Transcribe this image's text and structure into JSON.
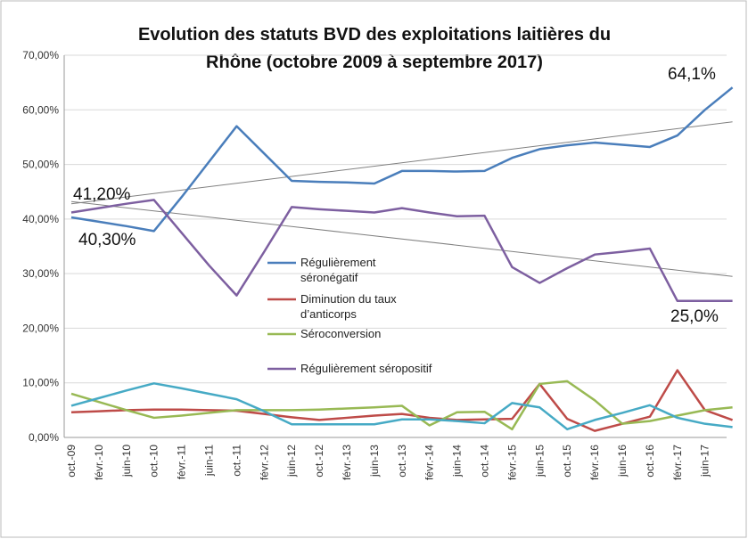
{
  "chart_data": {
    "type": "line",
    "title": [
      "Evolution des statuts BVD des exploitations laitières du",
      "Rhône (octobre 2009 à septembre 2017)"
    ],
    "categories": [
      "oct.-09",
      "févr.-10",
      "juin-10",
      "oct.-10",
      "févr.-11",
      "juin-11",
      "oct.-11",
      "févr.-12",
      "juin-12",
      "oct.-12",
      "févr.-13",
      "juin-13",
      "oct.-13",
      "févr.-14",
      "juin-14",
      "oct.-14",
      "févr.-15",
      "juin-15",
      "oct.-15",
      "févr.-16",
      "juin-16",
      "oct.-16",
      "févr.-17",
      "juin-17",
      null
    ],
    "series": [
      {
        "name": "Régulièrement séronégatif",
        "color": "#4a7ebb",
        "values": [
          40.3,
          39.5,
          38.7,
          37.8,
          44,
          50.5,
          57,
          52,
          47,
          46.8,
          46.7,
          46.5,
          48.8,
          48.8,
          48.7,
          48.8,
          51.2,
          52.8,
          53.5,
          54,
          53.6,
          53.2,
          55.3,
          60,
          64.1
        ]
      },
      {
        "name": "Diminution du taux d’anticorps",
        "color": "#be4b48",
        "values": [
          4.6,
          4.8,
          5,
          5.1,
          5.1,
          5,
          4.9,
          4.3,
          3.7,
          3.2,
          3.6,
          4,
          4.3,
          3.6,
          3.2,
          3.3,
          3.4,
          9.8,
          3.4,
          1.2,
          2.5,
          3.8,
          12.3,
          5,
          3.2
        ]
      },
      {
        "name": "Séroconversion",
        "color": "#98b954",
        "values": [
          8,
          6.5,
          5,
          3.6,
          4,
          4.5,
          5,
          5,
          5,
          5.1,
          5.3,
          5.5,
          5.8,
          2.2,
          4.6,
          4.7,
          1.5,
          9.8,
          10.3,
          6.8,
          2.5,
          3,
          4,
          5,
          5.5
        ]
      },
      {
        "name": null,
        "color": "#46aac5",
        "values": [
          5.8,
          7.2,
          8.6,
          9.9,
          9,
          8,
          7,
          4.8,
          2.4,
          2.4,
          2.4,
          2.4,
          3.3,
          3.3,
          3,
          2.6,
          6.3,
          5.5,
          1.5,
          3.2,
          4.5,
          5.9,
          3.6,
          2.5,
          1.9
        ]
      },
      {
        "name": "Régulièrement séropositif",
        "color": "#7d5fa0",
        "values": [
          41.2,
          42,
          42.8,
          43.5,
          37.5,
          31.5,
          26,
          34,
          42.2,
          41.8,
          41.5,
          41.2,
          42,
          41.2,
          40.5,
          40.6,
          31.2,
          28.3,
          31,
          33.5,
          34,
          34.6,
          25,
          25,
          25.0
        ]
      }
    ],
    "trendlines": [
      {
        "color": "#808080",
        "values": [
          42.8,
          57.8
        ]
      },
      {
        "color": "#808080",
        "values": [
          43.2,
          29.5
        ]
      }
    ],
    "annotations": [
      "41,20%",
      "40,30%",
      "64,1%",
      "25,0%"
    ],
    "ylim": [
      0,
      70
    ],
    "yticks": [
      {
        "value": 0,
        "label": "0,00%"
      },
      {
        "value": 10,
        "label": "10,00%"
      },
      {
        "value": 20,
        "label": "20,00%"
      },
      {
        "value": 30,
        "label": "30,00%"
      },
      {
        "value": 40,
        "label": "40,00%"
      },
      {
        "value": 50,
        "label": "50,00%"
      },
      {
        "value": 60,
        "label": "60,00%"
      },
      {
        "value": 70,
        "label": "70,00%"
      }
    ],
    "grid": true
  }
}
